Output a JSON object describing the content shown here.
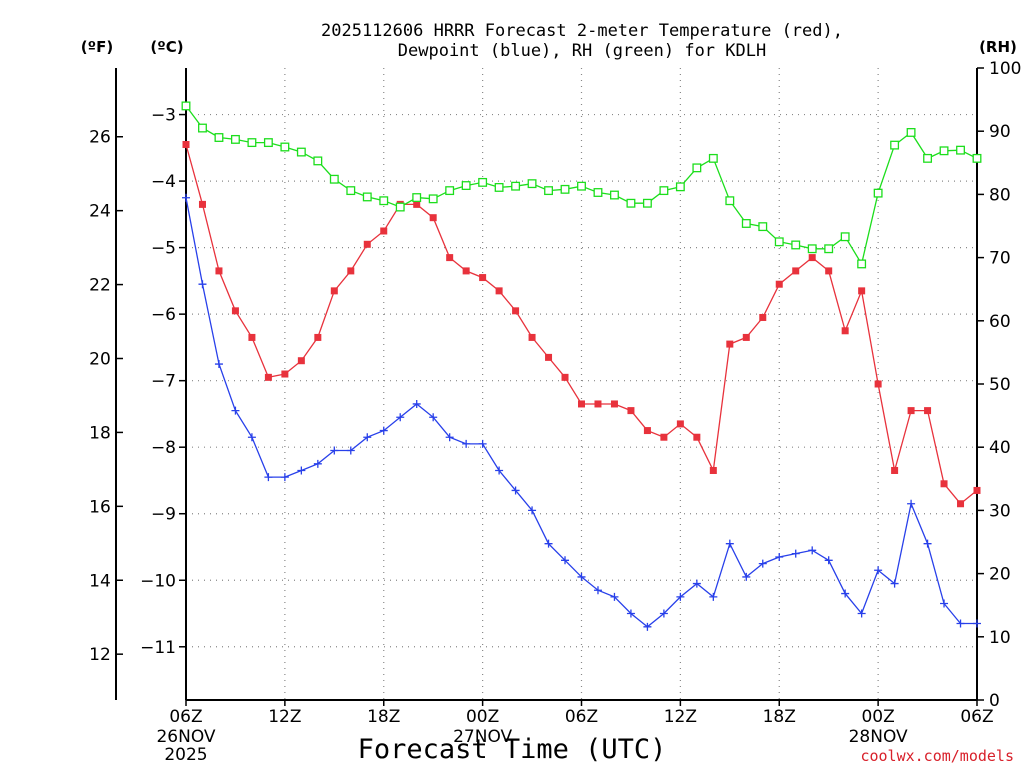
{
  "chart_data": {
    "type": "line",
    "title": {
      "line1": "2025112606 HRRR Forecast 2-meter Temperature (red),",
      "line2": "Dewpoint (blue), RH (green) for KDLH"
    },
    "xlabel": "Forecast Time (UTC)",
    "watermark": "coolwx.com/models",
    "units": {
      "fahrenheit": "(ºF)",
      "celsius": "(ºC)",
      "rh": "(RH)"
    },
    "x_hours": {
      "start": 0,
      "end": 48,
      "step": 1,
      "note": "hours after 2025-11-26 06Z"
    },
    "x_ticks": [
      {
        "hour": 0,
        "label": "06Z",
        "sub": [
          "26NOV",
          "2025"
        ]
      },
      {
        "hour": 6,
        "label": "12Z",
        "sub": []
      },
      {
        "hour": 12,
        "label": "18Z",
        "sub": []
      },
      {
        "hour": 18,
        "label": "00Z",
        "sub": [
          "27NOV"
        ]
      },
      {
        "hour": 24,
        "label": "06Z",
        "sub": []
      },
      {
        "hour": 30,
        "label": "12Z",
        "sub": []
      },
      {
        "hour": 36,
        "label": "18Z",
        "sub": []
      },
      {
        "hour": 42,
        "label": "00Z",
        "sub": [
          "28NOV"
        ]
      },
      {
        "hour": 48,
        "label": "06Z",
        "sub": []
      }
    ],
    "celsius_axis": {
      "range": [
        -11.8,
        -2.3
      ],
      "ticks": [
        -3,
        -4,
        -5,
        -6,
        -7,
        -8,
        -9,
        -10,
        -11
      ],
      "labels": [
        "−3",
        "−4",
        "−5",
        "−6",
        "−7",
        "−8",
        "−9",
        "−10",
        "−11"
      ]
    },
    "fahrenheit_axis": {
      "ticks": [
        26,
        24,
        22,
        20,
        18,
        16,
        14,
        12
      ]
    },
    "rh_axis": {
      "range": [
        0,
        100
      ],
      "ticks": [
        0,
        10,
        20,
        30,
        40,
        50,
        60,
        70,
        80,
        90,
        100
      ]
    },
    "series": [
      {
        "name": "Temperature",
        "color": "#e8323c",
        "marker": "filled-square",
        "axis": "celsius",
        "values": [
          -3.45,
          -4.35,
          -5.35,
          -5.95,
          -6.35,
          -6.95,
          -6.9,
          -6.7,
          -6.35,
          -5.65,
          -5.35,
          -4.95,
          -4.75,
          -4.35,
          -4.35,
          -4.55,
          -5.15,
          -5.35,
          -5.45,
          -5.65,
          -5.95,
          -6.35,
          -6.65,
          -6.95,
          -7.35,
          -7.35,
          -7.35,
          -7.45,
          -7.75,
          -7.85,
          -7.65,
          -7.85,
          -8.35,
          -6.45,
          -6.35,
          -6.05,
          -5.55,
          -5.35,
          -5.15,
          -5.35,
          -6.25,
          -5.65,
          -7.05,
          -8.35,
          -7.45,
          -7.45,
          -8.55,
          -8.85,
          -8.65
        ]
      },
      {
        "name": "Dewpoint",
        "color": "#2840ea",
        "marker": "plus",
        "axis": "celsius",
        "values": [
          -4.25,
          -5.55,
          -6.75,
          -7.45,
          -7.85,
          -8.45,
          -8.45,
          -8.35,
          -8.25,
          -8.05,
          -8.05,
          -7.85,
          -7.75,
          -7.55,
          -7.35,
          -7.55,
          -7.85,
          -7.95,
          -7.95,
          -8.35,
          -8.65,
          -8.95,
          -9.45,
          -9.7,
          -9.95,
          -10.15,
          -10.25,
          -10.5,
          -10.7,
          -10.5,
          -10.25,
          -10.05,
          -10.25,
          -9.45,
          -9.95,
          -9.75,
          -9.65,
          -9.6,
          -9.55,
          -9.7,
          -10.2,
          -10.5,
          -9.85,
          -10.05,
          -8.85,
          -9.45,
          -10.35,
          -10.65,
          -10.65
        ]
      },
      {
        "name": "RH",
        "color": "#1cde1c",
        "marker": "open-square",
        "axis": "rh",
        "values": [
          94,
          90.5,
          89,
          88.7,
          88.2,
          88.2,
          87.5,
          86.7,
          85.3,
          82.4,
          80.6,
          79.6,
          79,
          78,
          79.5,
          79.3,
          80.6,
          81.4,
          81.9,
          81.1,
          81.3,
          81.7,
          80.6,
          80.8,
          81.3,
          80.3,
          79.9,
          78.6,
          78.6,
          80.6,
          81.2,
          84.2,
          85.7,
          79,
          75.4,
          74.9,
          72.5,
          72,
          71.4,
          71.4,
          73.3,
          69,
          80.2,
          87.8,
          89.8,
          85.7,
          86.9,
          87,
          85.7
        ]
      }
    ]
  }
}
